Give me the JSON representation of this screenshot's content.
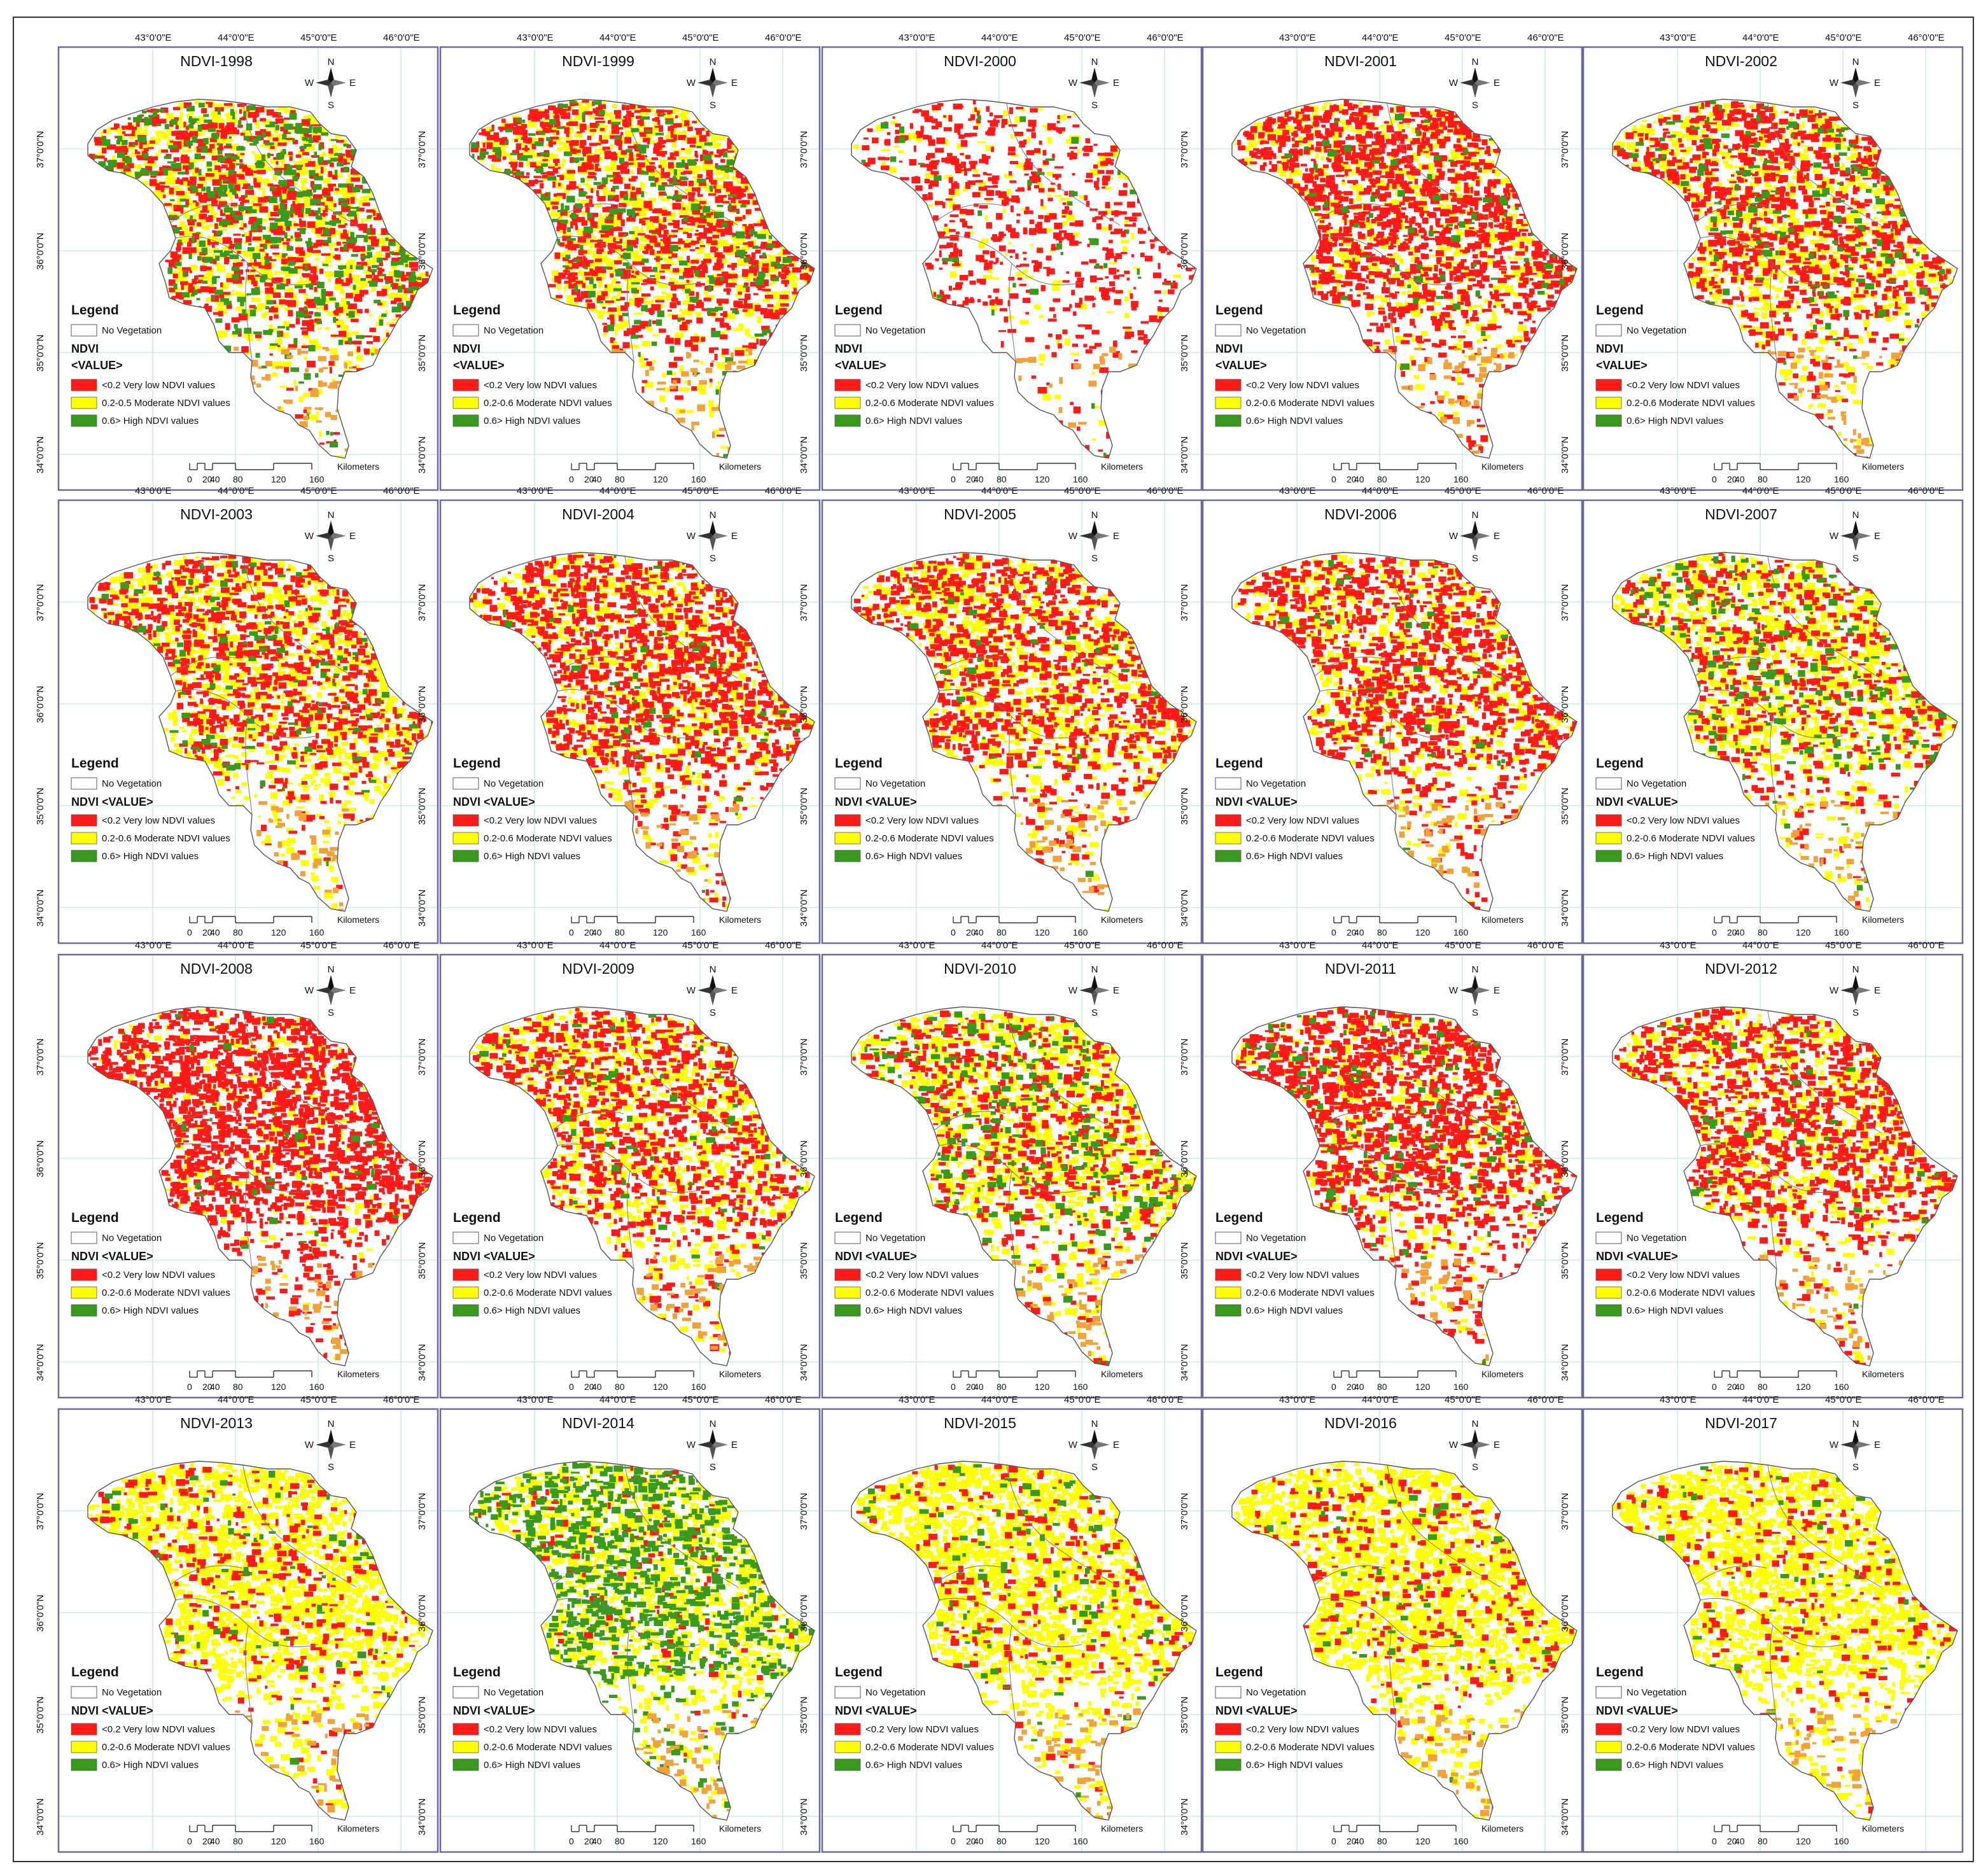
{
  "colors": {
    "very_low": "#ff1a1a",
    "moderate": "#ffff00",
    "high": "#3a9a1e",
    "none": "#ffffff",
    "orange": "#f2a23a",
    "gold": "#f0c419",
    "frame": "#6a6a9c",
    "grid": "#bfe6e0",
    "boundary": "#555555"
  },
  "graticule": {
    "lon_labels": [
      "43°0'0\"E",
      "44°0'0\"E",
      "45°0'0\"E",
      "46°0'0\"E"
    ],
    "lat_labels": [
      "37°0'0\"N",
      "36°0'0\"N",
      "35°0'0\"N",
      "34°0'0\"N"
    ]
  },
  "compass": {
    "n": "N",
    "s": "S",
    "e": "E",
    "w": "W"
  },
  "scale": {
    "ticks": [
      "0",
      "20",
      "40",
      "80",
      "120",
      "160"
    ],
    "unit": "Kilometers"
  },
  "legend": {
    "heading": "Legend",
    "no_vegetation": "No Vegetation",
    "ndvi": "NDVI",
    "value": "<VALUE>",
    "ndvi_value_inline": "NDVI  <VALUE>",
    "class_low": "<0.2 Very low NDVI values",
    "class_moderate": "0.2-0.6 Moderate NDVI values",
    "class_moderate_1998": "0.2-0.5 Moderate NDVI values",
    "class_high": "0.6> High NDVI values"
  },
  "panels": [
    {
      "title": "NDVI-1998",
      "year": 1998,
      "mix": [
        0.35,
        0.47,
        0.18
      ],
      "density": 0.9
    },
    {
      "title": "NDVI-1999",
      "year": 1999,
      "mix": [
        0.42,
        0.48,
        0.1
      ],
      "density": 0.9
    },
    {
      "title": "NDVI-2000",
      "year": 2000,
      "mix": [
        0.75,
        0.2,
        0.05
      ],
      "density": 0.3
    },
    {
      "title": "NDVI-2001",
      "year": 2001,
      "mix": [
        0.65,
        0.32,
        0.03
      ],
      "density": 0.85
    },
    {
      "title": "NDVI-2002",
      "year": 2002,
      "mix": [
        0.48,
        0.45,
        0.07
      ],
      "density": 0.85
    },
    {
      "title": "NDVI-2003",
      "year": 2003,
      "mix": [
        0.4,
        0.55,
        0.05
      ],
      "density": 0.85
    },
    {
      "title": "NDVI-2004",
      "year": 2004,
      "mix": [
        0.55,
        0.43,
        0.02
      ],
      "density": 0.85
    },
    {
      "title": "NDVI-2005",
      "year": 2005,
      "mix": [
        0.5,
        0.48,
        0.02
      ],
      "density": 0.8
    },
    {
      "title": "NDVI-2006",
      "year": 2006,
      "mix": [
        0.55,
        0.43,
        0.02
      ],
      "density": 0.75
    },
    {
      "title": "NDVI-2007",
      "year": 2007,
      "mix": [
        0.3,
        0.6,
        0.1
      ],
      "density": 0.8
    },
    {
      "title": "NDVI-2008",
      "year": 2008,
      "mix": [
        0.8,
        0.18,
        0.02
      ],
      "density": 0.8
    },
    {
      "title": "NDVI-2009",
      "year": 2009,
      "mix": [
        0.45,
        0.52,
        0.03
      ],
      "density": 0.8
    },
    {
      "title": "NDVI-2010",
      "year": 2010,
      "mix": [
        0.3,
        0.58,
        0.12
      ],
      "density": 0.85
    },
    {
      "title": "NDVI-2011",
      "year": 2011,
      "mix": [
        0.65,
        0.3,
        0.05
      ],
      "density": 0.8
    },
    {
      "title": "NDVI-2012",
      "year": 2012,
      "mix": [
        0.55,
        0.43,
        0.02
      ],
      "density": 0.75
    },
    {
      "title": "NDVI-2013",
      "year": 2013,
      "mix": [
        0.15,
        0.82,
        0.03
      ],
      "density": 0.8
    },
    {
      "title": "NDVI-2014",
      "year": 2014,
      "mix": [
        0.05,
        0.6,
        0.35
      ],
      "density": 0.9
    },
    {
      "title": "NDVI-2015",
      "year": 2015,
      "mix": [
        0.1,
        0.86,
        0.04
      ],
      "density": 0.85
    },
    {
      "title": "NDVI-2016",
      "year": 2016,
      "mix": [
        0.12,
        0.86,
        0.02
      ],
      "density": 0.85
    },
    {
      "title": "NDVI-2017",
      "year": 2017,
      "mix": [
        0.1,
        0.88,
        0.02
      ],
      "density": 0.8
    }
  ]
}
